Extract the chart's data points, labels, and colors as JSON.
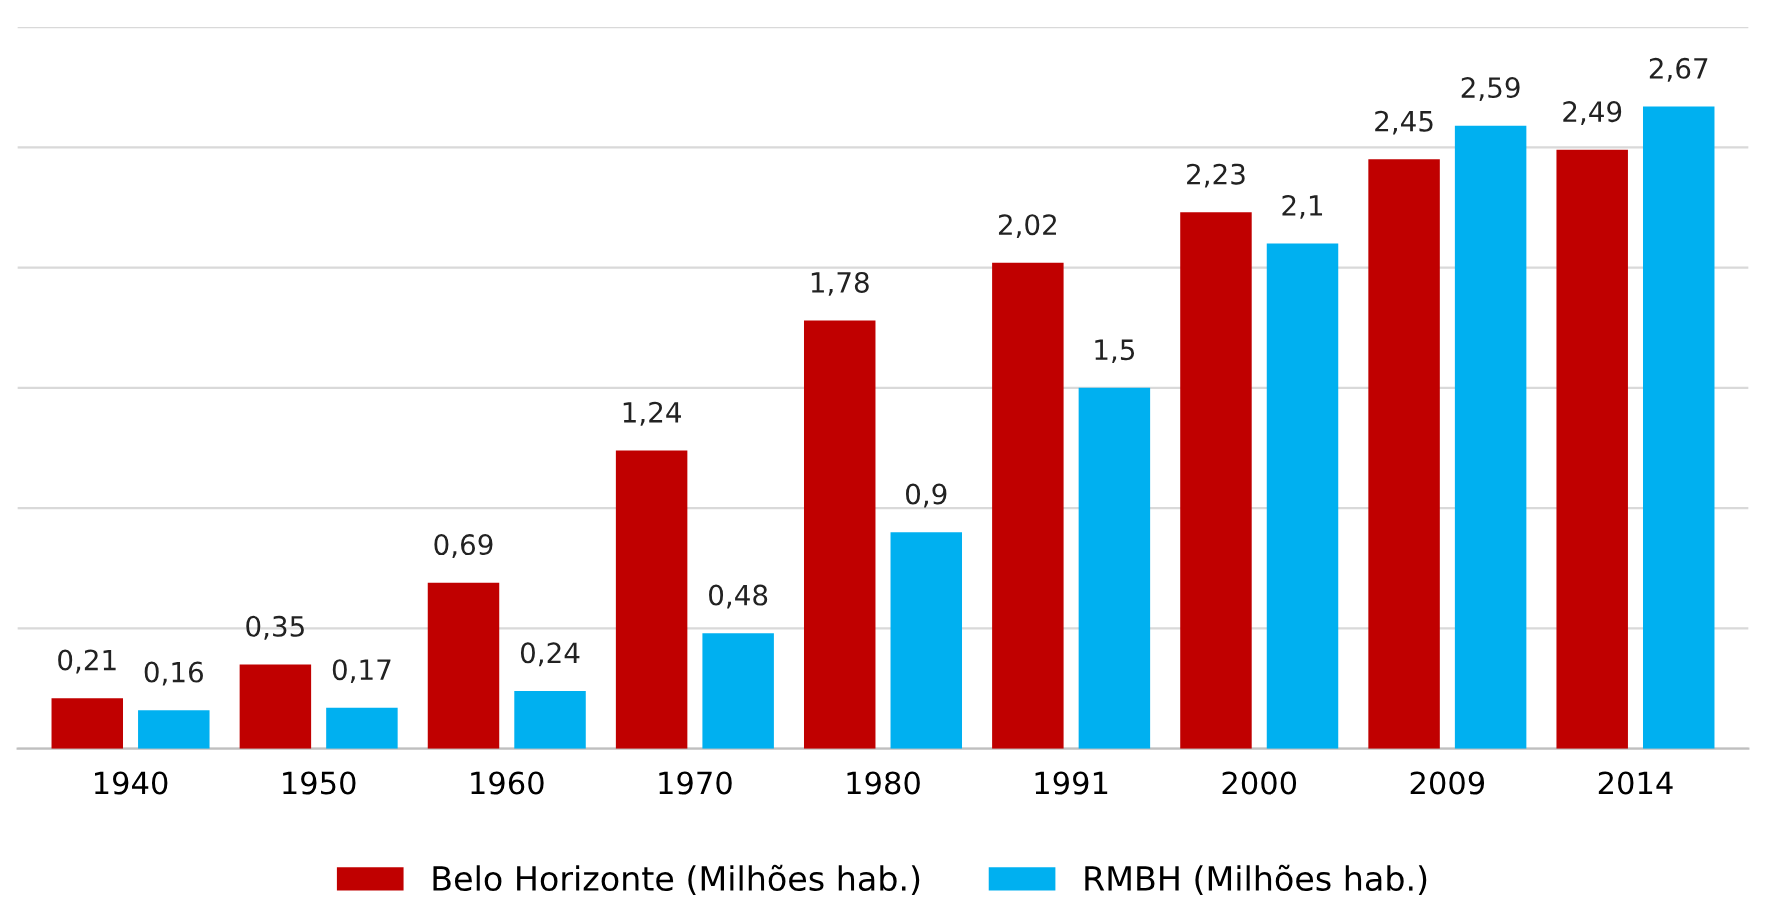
{
  "chart_data": {
    "type": "bar",
    "categories": [
      "1940",
      "1950",
      "1960",
      "1970",
      "1980",
      "1991",
      "2000",
      "2009",
      "2014"
    ],
    "series": [
      {
        "name": "Belo Horizonte (Milhões hab.)",
        "color": "#c00000",
        "values": [
          0.21,
          0.35,
          0.69,
          1.24,
          1.78,
          2.02,
          2.23,
          2.45,
          2.49
        ],
        "value_labels": [
          "0,21",
          "0,35",
          "0,69",
          "1,24",
          "1,78",
          "2,02",
          "2,23",
          "2,45",
          "2,49"
        ]
      },
      {
        "name": "RMBH (Milhões hab.)",
        "color": "#00b0f0",
        "values": [
          0.16,
          0.17,
          0.24,
          0.48,
          0.9,
          1.5,
          2.1,
          2.59,
          2.67
        ],
        "value_labels": [
          "0,16",
          "0,17",
          "0,24",
          "0,48",
          "0,9",
          "1,5",
          "2,1",
          "2,59",
          "2,67"
        ]
      }
    ],
    "ylim": [
      0,
      3
    ],
    "yticks": [
      {
        "value": 0,
        "label": null
      },
      {
        "value": 0.5,
        "label": null
      },
      {
        "value": 1,
        "label": null
      },
      {
        "value": 1.5,
        "label": null
      },
      {
        "value": 2,
        "label": null
      },
      {
        "value": 2.5,
        "label": null
      },
      {
        "value": 3,
        "label": null
      }
    ],
    "tick_labels": "x",
    "grid": "y",
    "legend": "bottom"
  }
}
